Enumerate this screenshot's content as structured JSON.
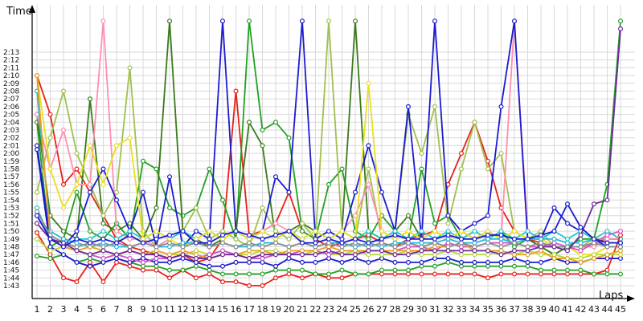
{
  "chart_data": {
    "type": "line",
    "ylabel": "Time",
    "xlabel": "Laps",
    "x_ticks": [
      1,
      2,
      3,
      4,
      5,
      6,
      7,
      8,
      9,
      10,
      11,
      12,
      13,
      14,
      15,
      16,
      17,
      18,
      19,
      20,
      21,
      22,
      23,
      24,
      25,
      26,
      27,
      28,
      29,
      30,
      31,
      32,
      33,
      34,
      35,
      36,
      37,
      38,
      39,
      40,
      41,
      42,
      43,
      44,
      45
    ],
    "y_ticks": [
      "1:43",
      "1:44",
      "1:45",
      "1:46",
      "1:47",
      "1:48",
      "1:49",
      "1:50",
      "1:51",
      "1:52",
      "1:53",
      "1:54",
      "1:55",
      "1:56",
      "1:57",
      "1:58",
      "1:59",
      "2:00",
      "2:01",
      "2:02",
      "2:03",
      "2:04",
      "2:05",
      "2:06",
      "2:07",
      "2:08",
      "2:09",
      "2:10",
      "2:11",
      "2:12",
      "2:13"
    ],
    "ylim_seconds": [
      103,
      134
    ],
    "xlim": [
      1,
      45
    ],
    "grid": true,
    "legend": "none",
    "series": [
      {
        "color": "#e8201a",
        "values": [
          109.8,
          107.0,
          104.0,
          103.5,
          106.0,
          103.5,
          106.0,
          105.5,
          105.0,
          105.0,
          104.0,
          105.0,
          104.0,
          104.5,
          103.5,
          103.5,
          103.0,
          103.0,
          104.0,
          104.5,
          104.0,
          104.5,
          104.0,
          104.0,
          104.5,
          104.5,
          104.5,
          104.5,
          104.5,
          104.5,
          104.5,
          104.5,
          104.5,
          104.5,
          104.0,
          104.5,
          104.5,
          104.5,
          104.5,
          104.5,
          104.5,
          104.5,
          104.5,
          105.0,
          109.5
        ]
      },
      {
        "color": "#22a022",
        "values": [
          106.8,
          106.5,
          107.0,
          106.0,
          106.5,
          106.0,
          106.5,
          106.0,
          105.5,
          105.5,
          105.0,
          105.0,
          105.5,
          105.0,
          104.5,
          104.5,
          104.5,
          104.5,
          105.0,
          105.0,
          105.0,
          104.5,
          104.5,
          105.0,
          104.5,
          104.5,
          105.0,
          105.0,
          105.0,
          105.5,
          105.5,
          106.0,
          105.5,
          105.5,
          105.5,
          105.5,
          105.5,
          105.5,
          105.0,
          105.0,
          105.0,
          105.0,
          104.5,
          104.5,
          104.5
        ]
      },
      {
        "color": "#1b1bd0",
        "values": [
          120.5,
          108.0,
          107.0,
          106.0,
          105.5,
          106.0,
          106.5,
          106.0,
          106.5,
          106.0,
          106.0,
          106.5,
          106.0,
          105.5,
          105.5,
          106.0,
          106.0,
          106.0,
          105.5,
          106.5,
          106.0,
          106.0,
          106.5,
          106.0,
          106.5,
          106.0,
          106.5,
          106.0,
          106.0,
          106.0,
          106.5,
          106.5,
          106.0,
          106.0,
          106.0,
          106.0,
          106.5,
          106.0,
          106.0,
          106.5,
          106.0,
          106.0,
          106.5,
          106.5,
          106.5
        ]
      },
      {
        "color": "#b8d83a",
        "values": [
          109.0,
          107.5,
          108.0,
          107.5,
          107.0,
          107.5,
          107.0,
          107.5,
          107.0,
          107.5,
          107.0,
          107.0,
          107.5,
          107.0,
          107.5,
          107.0,
          107.0,
          107.5,
          107.5,
          107.0,
          107.0,
          107.5,
          107.0,
          107.0,
          107.5,
          107.0,
          107.0,
          107.0,
          107.5,
          107.0,
          107.0,
          107.5,
          107.0,
          107.0,
          107.0,
          107.5,
          107.0,
          107.5,
          107.0,
          107.0,
          106.5,
          106.5,
          107.0,
          107.0,
          107.0
        ]
      },
      {
        "color": "#d04fd0",
        "values": [
          112.0,
          109.0,
          108.0,
          107.5,
          107.0,
          106.5,
          107.0,
          106.5,
          106.0,
          106.5,
          106.5,
          107.0,
          106.5,
          107.0,
          107.5,
          107.0,
          106.5,
          106.5,
          107.0,
          107.0,
          107.5,
          107.5,
          107.0,
          107.5,
          107.5,
          107.5,
          107.5,
          107.5,
          108.0,
          108.0,
          107.5,
          108.5,
          108.0,
          108.0,
          108.5,
          108.5,
          108.5,
          108.0,
          108.0,
          108.5,
          108.0,
          107.5,
          108.5,
          109.5,
          110.0
        ]
      },
      {
        "color": "#20b8e0",
        "values": [
          128.0,
          110.0,
          109.0,
          108.5,
          108.0,
          108.5,
          108.0,
          108.0,
          108.5,
          108.0,
          108.0,
          108.5,
          108.5,
          108.0,
          108.5,
          108.0,
          108.0,
          108.5,
          108.5,
          108.0,
          108.5,
          108.0,
          108.5,
          108.5,
          108.0,
          108.5,
          108.0,
          108.5,
          108.5,
          108.5,
          108.5,
          109.0,
          108.5,
          108.5,
          109.0,
          109.0,
          108.5,
          109.0,
          109.0,
          109.0,
          108.5,
          108.5,
          109.0,
          108.5,
          108.5
        ]
      },
      {
        "color": "#e8a020",
        "values": [
          130.0,
          109.0,
          108.0,
          107.5,
          108.0,
          107.5,
          107.0,
          107.5,
          107.0,
          107.5,
          107.0,
          107.5,
          107.0,
          106.5,
          107.0,
          107.0,
          107.5,
          107.5,
          107.0,
          107.5,
          107.5,
          107.5,
          108.0,
          107.5,
          107.5,
          107.5,
          107.5,
          107.5,
          107.5,
          107.5,
          108.0,
          108.0,
          108.5,
          107.5,
          107.5,
          107.5,
          107.0,
          107.0,
          107.5,
          106.5,
          106.5,
          106.0,
          106.5,
          107.0,
          107.5
        ]
      },
      {
        "color": "#8a8a8a",
        "values": [
          112.5,
          109.5,
          108.5,
          108.0,
          108.5,
          108.0,
          108.5,
          108.0,
          108.5,
          108.0,
          108.5,
          108.0,
          108.5,
          108.0,
          108.5,
          108.0,
          108.5,
          108.0,
          108.5,
          108.0,
          108.5,
          108.0,
          108.5,
          108.0,
          108.5,
          108.0,
          108.5,
          108.0,
          108.5,
          108.0,
          108.5,
          108.0,
          108.5,
          108.0,
          108.5,
          108.0,
          108.5,
          108.0,
          108.5,
          108.0,
          108.0,
          108.0,
          108.5,
          108.0,
          108.0
        ]
      },
      {
        "color": "#6a2a9a",
        "values": [
          111.0,
          109.0,
          108.5,
          107.5,
          107.0,
          107.5,
          107.0,
          107.5,
          107.0,
          107.0,
          106.5,
          107.0,
          106.5,
          106.5,
          107.0,
          107.0,
          106.5,
          107.0,
          107.0,
          107.0,
          107.0,
          107.0,
          107.5,
          107.0,
          107.0,
          107.5,
          107.5,
          107.0,
          107.0,
          107.5,
          107.5,
          107.5,
          107.5,
          107.5,
          107.5,
          107.0,
          107.5,
          107.5,
          108.0,
          108.0,
          107.5,
          109.5,
          113.5,
          114.0,
          136.0
        ]
      },
      {
        "color": "#1b1bd0",
        "values": [
          112.0,
          109.0,
          108.0,
          109.0,
          108.5,
          109.0,
          108.5,
          109.5,
          108.5,
          109.0,
          109.5,
          110.0,
          108.5,
          108.5,
          109.5,
          110.0,
          109.5,
          109.0,
          109.5,
          110.0,
          108.5,
          108.5,
          109.0,
          108.5,
          109.0,
          108.5,
          109.0,
          109.5,
          109.0,
          109.0,
          109.0,
          109.5,
          109.0,
          109.0,
          109.5,
          109.5,
          109.0,
          109.0,
          109.5,
          110.0,
          113.5,
          110.5,
          109.0,
          108.5,
          108.5
        ]
      }
    ],
    "spikes": [
      {
        "color": "#e8201a",
        "values": [
          130.0,
          125.0,
          116.0,
          118.0,
          115.0,
          112.0,
          109.0,
          108.0,
          107.5,
          107.0,
          106.5,
          107.0,
          106.0,
          106.5,
          109.0,
          128.0,
          109.5,
          110.0,
          111.0,
          115.0,
          110.0,
          109.0,
          108.0,
          108.5,
          109.0,
          109.5,
          108.5,
          108.0,
          109.0,
          109.5,
          110.0,
          116.0,
          120.0,
          124.0,
          119.0,
          113.0,
          110.0,
          109.0,
          108.5,
          108.0,
          108.0,
          108.0,
          108.5,
          109.0,
          109.0
        ]
      },
      {
        "color": "#22a022",
        "values": [
          124.0,
          108.0,
          109.0,
          115.0,
          110.0,
          109.0,
          111.0,
          109.0,
          119.0,
          118.0,
          113.0,
          112.0,
          113.0,
          118.0,
          114.0,
          109.0,
          137.0,
          123.0,
          124.0,
          122.0,
          110.0,
          109.0,
          116.0,
          118.0,
          110.0,
          109.0,
          112.0,
          110.0,
          109.0,
          118.0,
          111.0,
          112.0,
          109.0,
          110.0,
          109.0,
          110.0,
          108.0,
          109.0,
          108.0,
          107.0,
          108.0,
          109.0,
          109.0,
          116.0,
          137.0
        ]
      },
      {
        "color": "#3a7a1a",
        "values": [
          125.0,
          112.0,
          110.0,
          109.0,
          127.0,
          111.0,
          110.0,
          111.0,
          109.0,
          113.0,
          137.0,
          110.0,
          109.0,
          108.0,
          109.0,
          110.0,
          124.0,
          121.0,
          109.0,
          110.0,
          111.0,
          110.0,
          109.0,
          110.0,
          137.0,
          110.0,
          109.0,
          110.0,
          112.0,
          109.0,
          110.0,
          109.0,
          110.0,
          109.0,
          110.0,
          109.0,
          110.0,
          109.0,
          108.0,
          107.0,
          108.0,
          108.0,
          108.0,
          109.0,
          109.0
        ]
      },
      {
        "color": "#a0c050",
        "values": [
          115.0,
          122.0,
          128.0,
          120.0,
          116.0,
          112.0,
          115.0,
          131.0,
          110.0,
          108.0,
          109.0,
          110.0,
          113.0,
          109.0,
          110.0,
          109.0,
          108.0,
          113.0,
          110.0,
          109.0,
          111.0,
          109.0,
          137.0,
          110.0,
          109.0,
          118.0,
          109.0,
          110.0,
          125.0,
          120.0,
          126.0,
          111.0,
          118.0,
          124.0,
          118.0,
          120.0,
          110.0,
          109.0,
          110.0,
          108.0,
          108.0,
          108.0,
          109.0,
          109.0,
          109.0
        ]
      },
      {
        "color": "#ff8fb0",
        "values": [
          125.0,
          118.0,
          123.0,
          116.0,
          116.0,
          137.0,
          110.0,
          109.0,
          109.0,
          108.0,
          109.0,
          110.0,
          109.0,
          110.0,
          109.0,
          110.0,
          109.0,
          110.0,
          111.0,
          110.0,
          109.0,
          110.0,
          109.0,
          110.0,
          112.0,
          116.0,
          110.0,
          109.0,
          110.0,
          109.0,
          110.0,
          109.0,
          110.0,
          109.0,
          110.0,
          109.0,
          137.0,
          110.0,
          109.0,
          108.0,
          108.0,
          108.0,
          108.0,
          109.0,
          109.0
        ]
      },
      {
        "color": "#1b1bd0",
        "values": [
          121.0,
          109.0,
          108.0,
          110.0,
          115.0,
          118.0,
          114.0,
          110.0,
          115.0,
          108.0,
          117.0,
          108.0,
          110.0,
          109.0,
          137.0,
          110.0,
          109.0,
          110.0,
          117.0,
          115.0,
          137.0,
          109.0,
          110.0,
          109.0,
          115.0,
          121.0,
          115.0,
          110.0,
          126.0,
          109.0,
          137.0,
          112.0,
          110.0,
          111.0,
          112.0,
          126.0,
          137.0,
          109.0,
          109.0,
          113.0,
          111.0,
          110.0,
          109.0,
          108.0,
          108.0
        ]
      },
      {
        "color": "#20c8c8",
        "values": [
          113.0,
          109.0,
          108.0,
          109.0,
          109.0,
          110.0,
          109.0,
          110.0,
          109.0,
          110.0,
          109.0,
          110.0,
          109.0,
          110.0,
          109.0,
          110.0,
          109.0,
          110.0,
          109.0,
          110.0,
          109.0,
          110.0,
          109.0,
          110.0,
          109.0,
          110.0,
          109.0,
          110.0,
          109.0,
          110.0,
          109.0,
          110.0,
          109.0,
          110.0,
          109.0,
          110.0,
          109.0,
          110.0,
          109.0,
          110.0,
          109.0,
          110.0,
          109.0,
          110.0,
          109.0
        ]
      },
      {
        "color": "#e8e020",
        "values": [
          130.0,
          118.0,
          113.0,
          116.0,
          121.0,
          116.0,
          121.0,
          122.0,
          109.0,
          110.0,
          109.0,
          108.0,
          109.0,
          110.0,
          109.0,
          110.0,
          109.0,
          110.0,
          109.0,
          110.0,
          109.0,
          110.0,
          109.0,
          110.0,
          109.0,
          129.0,
          110.0,
          109.0,
          110.0,
          109.0,
          110.0,
          109.0,
          110.0,
          109.0,
          110.0,
          109.0,
          110.0,
          109.0,
          109.0,
          108.0,
          108.0,
          107.0,
          107.0,
          108.0,
          108.0
        ]
      }
    ]
  }
}
